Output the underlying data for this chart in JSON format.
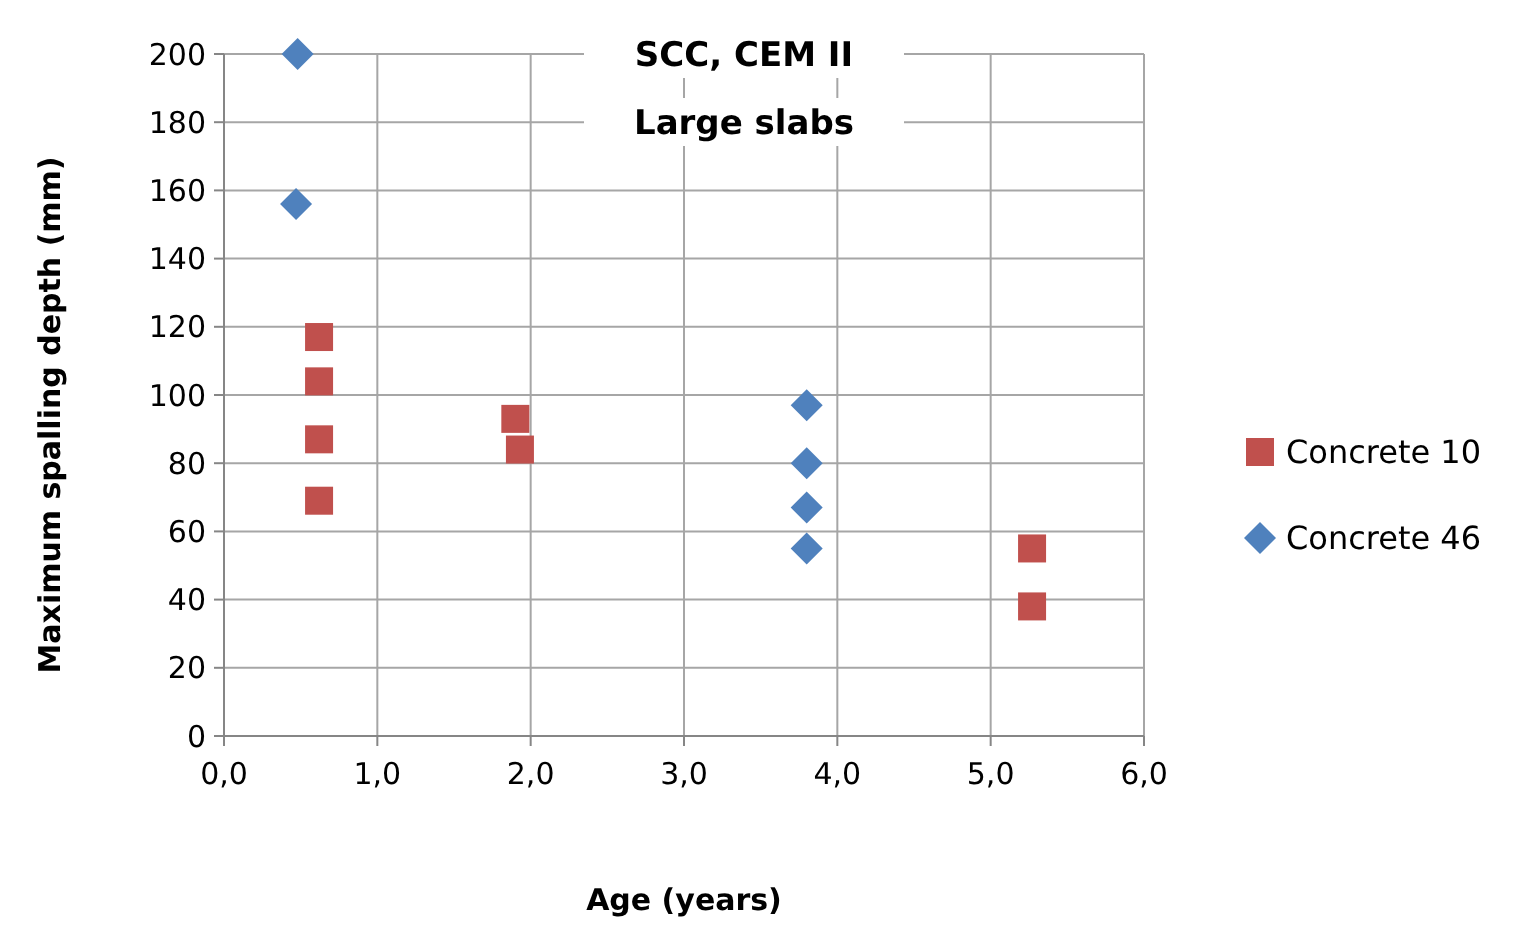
{
  "chart_data": {
    "type": "scatter",
    "title": "SCC, CEM II",
    "subtitle": "Large slabs",
    "xlabel": "Age (years)",
    "ylabel": "Maximum spalling depth (mm)",
    "xlim": [
      0,
      6
    ],
    "ylim": [
      0,
      200
    ],
    "xticks": [
      {
        "value": 0,
        "label": "0,0"
      },
      {
        "value": 1,
        "label": "1,0"
      },
      {
        "value": 2,
        "label": "2,0"
      },
      {
        "value": 3,
        "label": "3,0"
      },
      {
        "value": 4,
        "label": "4,0"
      },
      {
        "value": 5,
        "label": "5,0"
      },
      {
        "value": 6,
        "label": "6,0"
      }
    ],
    "yticks": [
      0,
      20,
      40,
      60,
      80,
      100,
      120,
      140,
      160,
      180,
      200
    ],
    "grid": true,
    "legend": "right",
    "series": [
      {
        "name": "Concrete 10",
        "color": "#c0504d",
        "marker": "square",
        "x": [
          0.62,
          0.62,
          0.62,
          0.62,
          1.9,
          1.93,
          5.27,
          5.27
        ],
        "values": [
          117,
          104,
          87,
          69,
          93,
          84,
          55,
          38
        ]
      },
      {
        "name": "Concrete 46",
        "color": "#4f81bd",
        "marker": "diamond",
        "x": [
          0.48,
          0.47,
          3.8,
          3.8,
          3.8,
          3.8
        ],
        "values": [
          200,
          156,
          97,
          80,
          67,
          55
        ]
      }
    ]
  }
}
